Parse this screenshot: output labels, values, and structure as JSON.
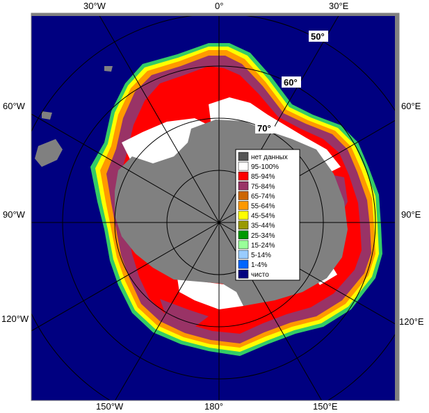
{
  "map": {
    "longitude_labels": {
      "top": [
        "30°W",
        "0°",
        "30°E"
      ],
      "bottom": [
        "150°W",
        "180°",
        "150°E"
      ],
      "left": [
        "60°W",
        "90°W",
        "120°W"
      ],
      "right": [
        "60°E",
        "90°E",
        "120°E"
      ]
    },
    "latitude_labels": [
      "50°",
      "60°",
      "70°"
    ],
    "colors": {
      "ocean": "#000080",
      "land": "#808080",
      "no_data": "#555555",
      "frame": "#808080",
      "grid": "#bbbbbb"
    }
  },
  "legend": {
    "items": [
      {
        "label": "нет данных",
        "color": "#555555"
      },
      {
        "label": "95-100%",
        "color": "#ffffff"
      },
      {
        "label": "85-94%",
        "color": "#ff0000"
      },
      {
        "label": "75-84%",
        "color": "#993366"
      },
      {
        "label": "65-74%",
        "color": "#cc6600"
      },
      {
        "label": "55-64%",
        "color": "#ff9900"
      },
      {
        "label": "45-54%",
        "color": "#ffff00"
      },
      {
        "label": "35-44%",
        "color": "#999900"
      },
      {
        "label": "25-34%",
        "color": "#009900"
      },
      {
        "label": "15-24%",
        "color": "#99ff99"
      },
      {
        "label": "5-14%",
        "color": "#99ccff"
      },
      {
        "label": "1-4%",
        "color": "#0066ff"
      },
      {
        "label": "чисто",
        "color": "#000080"
      }
    ]
  }
}
